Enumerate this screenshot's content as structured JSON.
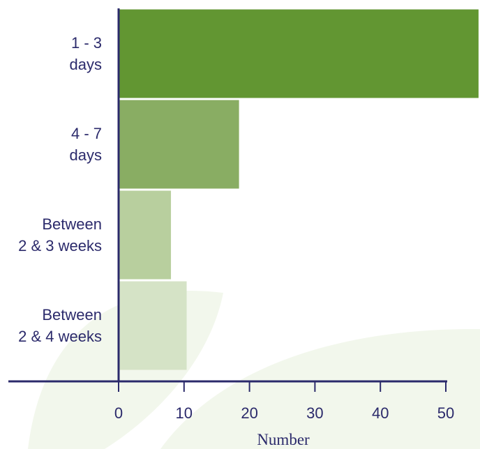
{
  "chart_data": {
    "type": "bar",
    "orientation": "horizontal",
    "categories": [
      [
        "1 - 3",
        "days"
      ],
      [
        "4 - 7",
        "days"
      ],
      [
        "Between",
        "2 & 3 weeks"
      ],
      [
        "Between",
        "2 & 4 weeks"
      ]
    ],
    "values": [
      55,
      18.4,
      8,
      10.4
    ],
    "bar_colors": [
      "#629632",
      "#89ad63",
      "#b8cf9e",
      "#d5e3c6"
    ],
    "xlabel": "Number",
    "xlim": [
      0,
      55
    ],
    "xticks": [
      0,
      10,
      20,
      30,
      40,
      50
    ],
    "xtick_labels": [
      "0",
      "10",
      "20",
      "30",
      "40",
      "50"
    ],
    "axis_color": "#2b2a6b",
    "background_shape_color": "#f2f7ec"
  }
}
